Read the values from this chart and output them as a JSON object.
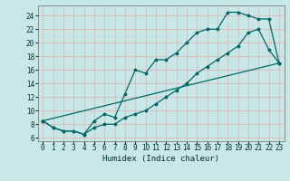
{
  "xlabel": "Humidex (Indice chaleur)",
  "bg_color": "#c8e8e8",
  "grid_color": "#e0b8b8",
  "line_color": "#006868",
  "xlim": [
    -0.5,
    23.5
  ],
  "ylim": [
    5.5,
    25.5
  ],
  "xticks": [
    0,
    1,
    2,
    3,
    4,
    5,
    6,
    7,
    8,
    9,
    10,
    11,
    12,
    13,
    14,
    15,
    16,
    17,
    18,
    19,
    20,
    21,
    22,
    23
  ],
  "yticks": [
    6,
    8,
    10,
    12,
    14,
    16,
    18,
    20,
    22,
    24
  ],
  "line1_x": [
    0,
    1,
    2,
    3,
    4,
    5,
    6,
    7,
    8,
    9,
    10,
    11,
    12,
    13,
    14,
    15,
    16,
    17,
    18,
    19,
    20,
    21,
    22,
    23
  ],
  "line1_y": [
    8.5,
    7.5,
    7.0,
    7.0,
    6.5,
    8.5,
    9.5,
    9.0,
    12.5,
    16.0,
    15.5,
    17.5,
    17.5,
    18.5,
    20.0,
    21.5,
    22.0,
    22.0,
    24.5,
    24.5,
    24.0,
    23.5,
    23.5,
    17.0
  ],
  "line2_x": [
    0,
    1,
    2,
    3,
    4,
    5,
    6,
    7,
    8,
    9,
    10,
    11,
    12,
    13,
    14,
    15,
    16,
    17,
    18,
    19,
    20,
    21,
    22,
    23
  ],
  "line2_y": [
    8.5,
    7.5,
    7.0,
    7.0,
    6.5,
    7.5,
    8.0,
    8.0,
    9.0,
    9.5,
    10.0,
    11.0,
    12.0,
    13.0,
    14.0,
    15.5,
    16.5,
    17.5,
    18.5,
    19.5,
    21.5,
    22.0,
    19.0,
    17.0
  ],
  "line3_x": [
    0,
    23
  ],
  "line3_y": [
    8.5,
    17.0
  ],
  "xlabel_fontsize": 6.5,
  "tick_fontsize": 5.5,
  "marker_size": 2.5,
  "line_width": 0.9
}
